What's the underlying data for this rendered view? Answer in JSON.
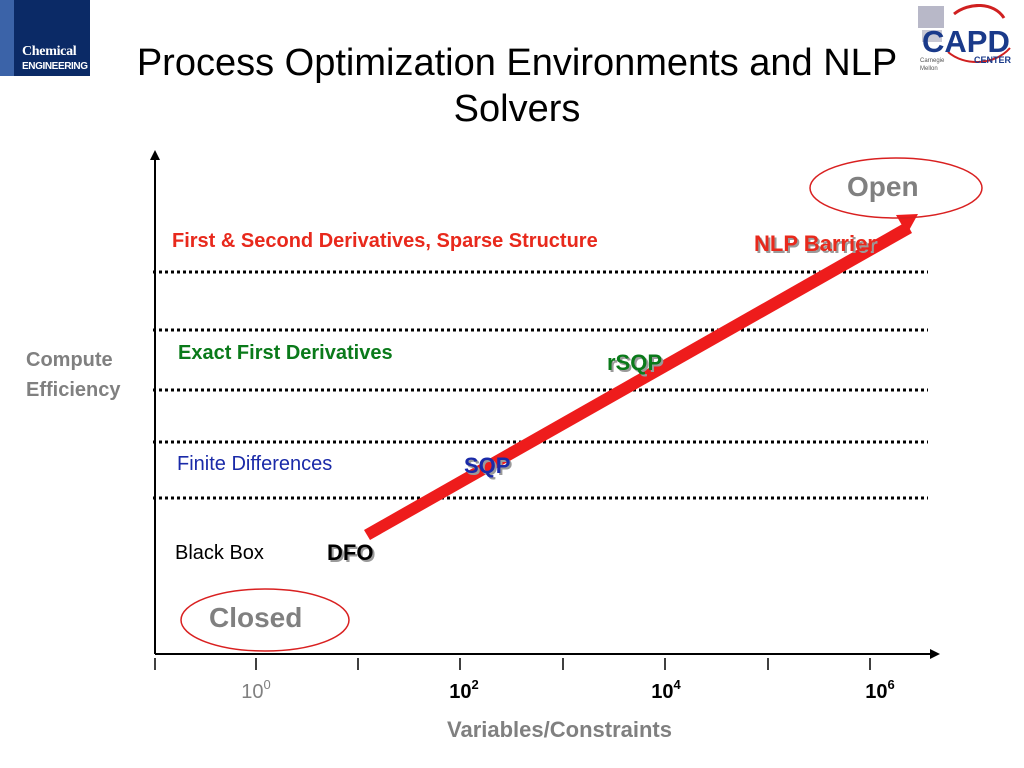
{
  "title": "Process Optimization Environments and NLP Solvers",
  "logo_left": {
    "line1": "Chemical",
    "line2": "ENGINEERING"
  },
  "logo_right": {
    "main": "CAPD",
    "sub": "CENTER",
    "small1": "Carnegie",
    "small2": "Mellon"
  },
  "y_axis_label": {
    "line1": "Compute",
    "line2": "Efficiency"
  },
  "x_axis_label": "Variables/Constraints",
  "x_ticks": [
    {
      "base": "10",
      "exp": "0",
      "bold": false,
      "color": "#808080"
    },
    {
      "base": "10",
      "exp": "2",
      "bold": true,
      "color": "#000000"
    },
    {
      "base": "10",
      "exp": "4",
      "bold": true,
      "color": "#000000"
    },
    {
      "base": "10",
      "exp": "6",
      "bold": true,
      "color": "#000000"
    }
  ],
  "levels": [
    {
      "label": "First & Second Derivatives, Sparse Structure",
      "color": "#e8291c",
      "bold": true
    },
    {
      "label": "Exact First Derivatives",
      "color": "#0a7a1a",
      "bold": true
    },
    {
      "label": "Finite Differences",
      "color": "#1a2aa8",
      "bold": false
    },
    {
      "label": "Black Box",
      "color": "#000000",
      "bold": false
    }
  ],
  "methods": [
    {
      "label": "NLP Barrier",
      "color": "#e8291c"
    },
    {
      "label": "rSQP",
      "color": "#0a7a1a"
    },
    {
      "label": "SQP",
      "color": "#1a2aa8"
    },
    {
      "label": "DFO",
      "color": "#000000"
    }
  ],
  "open_label": "Open",
  "closed_label": "Closed",
  "colors": {
    "arrow": "#ee1c1c",
    "ellipse": "#d92020",
    "dotted_line": "#000000",
    "muted_text": "#808080"
  }
}
